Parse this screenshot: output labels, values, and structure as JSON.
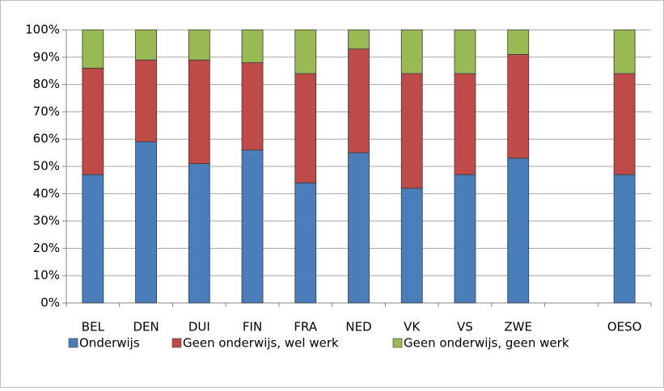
{
  "chart_data": {
    "type": "stacked_bar",
    "categories": [
      "BEL",
      "DEN",
      "DUI",
      "FIN",
      "FRA",
      "NED",
      "VK",
      "VS",
      "ZWE",
      null,
      "OESO"
    ],
    "series": [
      {
        "name": "Onderwijs",
        "color": "#4a7ebb",
        "values": [
          47,
          59,
          51,
          56,
          44,
          55,
          42,
          47,
          53,
          null,
          47
        ]
      },
      {
        "name": "Geen onderwijs, wel werk",
        "color": "#be4b48",
        "values": [
          39,
          30,
          38,
          32,
          40,
          38,
          42,
          37,
          38,
          null,
          37
        ]
      },
      {
        "name": "Geen onderwijs, geen werk",
        "color": "#98b954",
        "values": [
          14,
          11,
          11,
          12,
          16,
          7,
          16,
          16,
          9,
          null,
          16
        ]
      }
    ],
    "ylim": [
      0,
      100
    ],
    "yticks": [
      {
        "value": 0,
        "label": "0%"
      },
      {
        "value": 10,
        "label": "10%"
      },
      {
        "value": 20,
        "label": "20%"
      },
      {
        "value": 30,
        "label": "30%"
      },
      {
        "value": 40,
        "label": "40%"
      },
      {
        "value": 50,
        "label": "50%"
      },
      {
        "value": 60,
        "label": "60%"
      },
      {
        "value": 70,
        "label": "70%"
      },
      {
        "value": 80,
        "label": "80%"
      },
      {
        "value": 90,
        "label": "90%"
      },
      {
        "value": 100,
        "label": "100%"
      }
    ],
    "grid": true,
    "legend": "bottom"
  }
}
